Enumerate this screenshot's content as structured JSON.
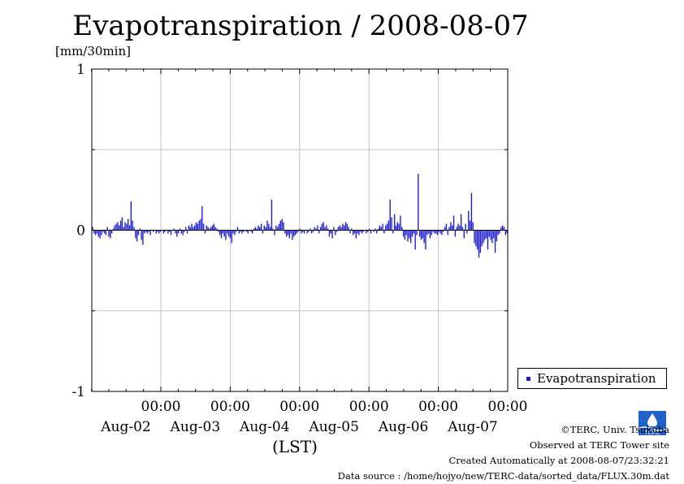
{
  "title": "Evapotranspiration / 2008-08-07",
  "unit_label": "[mm/30min]",
  "legend": {
    "label": "Evapotranspiration"
  },
  "x_axis_label": "(LST)",
  "credits": {
    "copyright": "©TERC, Univ. Tsukuba",
    "observed": "Observed at TERC Tower site",
    "created": "Created Automatically at 2008-08-07/23:32:21",
    "source": "Data source : /home/hojyo/new/TERC-data/sorted_data/FLUX.30m.dat"
  },
  "logo": {
    "icon": "terc-logo-icon",
    "text": "TERC"
  },
  "chart_data": {
    "type": "bar",
    "title": "Evapotranspiration / 2008-08-07",
    "ylabel": "[mm/30min]",
    "xlabel": "(LST)",
    "ylim": [
      -1,
      1
    ],
    "y_ticks": [
      "1",
      "0",
      "-1"
    ],
    "x_ticks": [
      {
        "time": "00:00",
        "date": "Aug-02"
      },
      {
        "time": "00:00",
        "date": "Aug-03"
      },
      {
        "time": "00:00",
        "date": "Aug-04"
      },
      {
        "time": "00:00",
        "date": "Aug-05"
      },
      {
        "time": "00:00",
        "date": "Aug-06"
      },
      {
        "time": "00:00",
        "date": "Aug-07"
      }
    ],
    "x_start": "Aug-01 00:00",
    "step": "30min",
    "grid": true,
    "legend_position": "right",
    "color": "#1a1ad6",
    "series": [
      {
        "name": "Evapotranspiration",
        "values": [
          0.02,
          -0.02,
          -0.03,
          -0.02,
          -0.04,
          -0.05,
          -0.03,
          -0.01,
          -0.02,
          -0.03,
          0.02,
          -0.04,
          -0.05,
          -0.02,
          0.01,
          0.03,
          0.04,
          0.05,
          0.03,
          0.06,
          0.08,
          0.02,
          0.05,
          0.04,
          0.07,
          0.03,
          0.18,
          0.06,
          0.02,
          -0.05,
          -0.07,
          -0.03,
          0.01,
          -0.06,
          -0.09,
          -0.02,
          -0.01,
          -0.02,
          -0.01,
          -0.03,
          0,
          -0.01,
          0,
          -0.02,
          -0.01,
          -0.02,
          -0.01,
          0,
          -0.02,
          -0.01,
          0,
          -0.02,
          -0.01,
          -0.03,
          0,
          0.01,
          -0.02,
          -0.04,
          -0.02,
          0.01,
          -0.02,
          -0.03,
          -0.01,
          0.02,
          -0.02,
          0.03,
          0.02,
          0.04,
          0.02,
          0.03,
          0.05,
          0.04,
          0.06,
          0.07,
          0.15,
          0.04,
          -0.02,
          0.03,
          0.02,
          0.01,
          0.02,
          0.03,
          0.04,
          0.02,
          0.01,
          -0.01,
          -0.03,
          -0.05,
          -0.02,
          -0.04,
          -0.06,
          -0.02,
          -0.04,
          -0.05,
          -0.08,
          -0.02,
          -0.03,
          -0.01,
          0.02,
          -0.02,
          -0.01,
          -0.02,
          -0.01,
          0,
          -0.01,
          -0.02,
          0,
          -0.01,
          -0.02,
          0.01,
          0.02,
          0.01,
          0.03,
          0.02,
          0.04,
          -0.02,
          0.03,
          0.02,
          0.06,
          0.04,
          0.02,
          0.19,
          0.01,
          -0.03,
          0.03,
          0.02,
          0.04,
          0.06,
          0.07,
          0.05,
          -0.02,
          -0.04,
          -0.03,
          -0.05,
          -0.02,
          -0.06,
          -0.04,
          -0.03,
          -0.02,
          -0.01,
          0.01,
          -0.02,
          -0.01,
          -0.02,
          0,
          -0.02,
          -0.01,
          0.01,
          -0.02,
          -0.01,
          0.02,
          0.01,
          0.03,
          -0.02,
          0.02,
          0.04,
          0.05,
          0.02,
          0.03,
          0.01,
          -0.04,
          -0.02,
          -0.05,
          0.02,
          -0.03,
          -0.01,
          0.02,
          0.03,
          0.02,
          0.04,
          0.03,
          0.05,
          0.04,
          0.02,
          -0.02,
          0.01,
          -0.03,
          -0.02,
          -0.05,
          -0.02,
          -0.03,
          -0.01,
          -0.02,
          -0.01,
          0,
          -0.02,
          -0.01,
          0.01,
          -0.02,
          0,
          -0.01,
          0.01,
          -0.02,
          0.01,
          0.03,
          0.02,
          0.04,
          -0.02,
          0.03,
          0.04,
          0.06,
          0.19,
          0.08,
          -0.02,
          0.1,
          0.03,
          0.05,
          0.04,
          0.09,
          0.02,
          -0.04,
          -0.06,
          -0.03,
          -0.07,
          -0.05,
          -0.08,
          -0.04,
          -0.02,
          -0.12,
          -0.03,
          0.35,
          -0.04,
          -0.06,
          -0.05,
          -0.08,
          -0.12,
          -0.03,
          -0.02,
          -0.05,
          -0.03,
          -0.01,
          -0.02,
          -0.02,
          -0.03,
          -0.01,
          -0.02,
          -0.03,
          -0.01,
          0.02,
          0.04,
          -0.03,
          0.02,
          0.05,
          0.03,
          0.09,
          -0.04,
          0.02,
          0.04,
          0.03,
          0.1,
          0.02,
          -0.05,
          0.04,
          -0.02,
          0.12,
          0.06,
          0.23,
          0.05,
          -0.08,
          -0.1,
          -0.12,
          -0.17,
          -0.14,
          -0.1,
          -0.08,
          -0.06,
          -0.05,
          -0.12,
          -0.04,
          -0.06,
          -0.08,
          -0.05,
          -0.14,
          -0.07,
          -0.03,
          -0.02,
          0.02,
          0.03,
          0.02,
          -0.03,
          -0.02
        ]
      }
    ]
  }
}
